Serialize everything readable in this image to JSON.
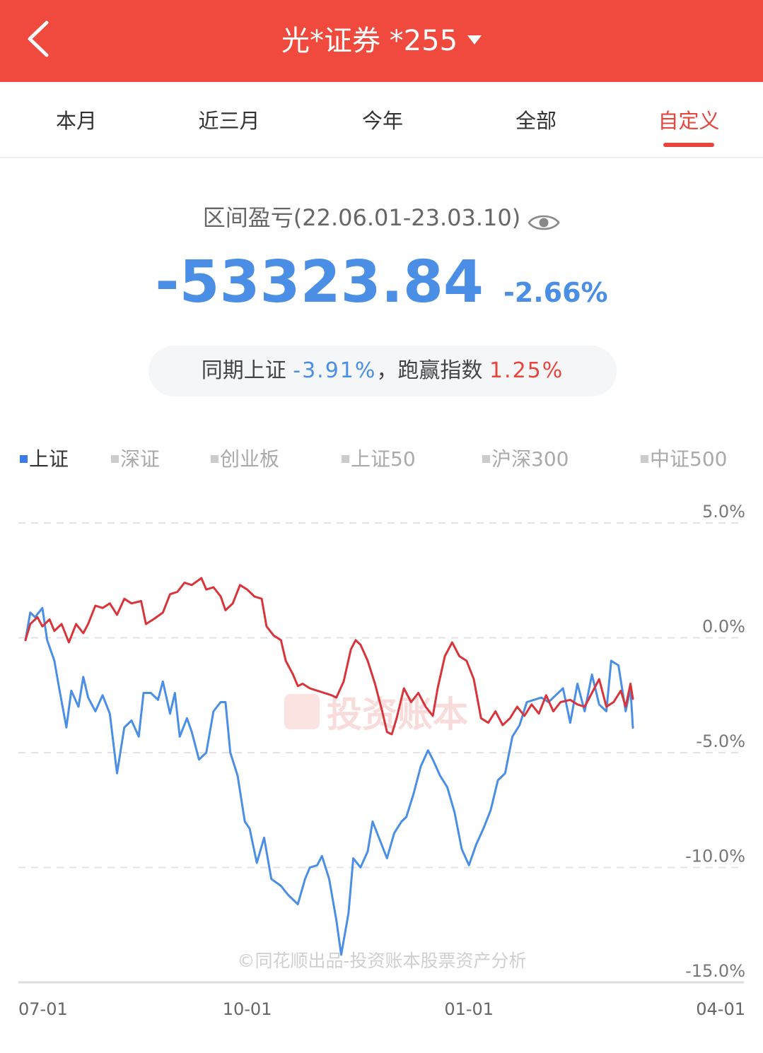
{
  "header": {
    "title": "光*证券 *255",
    "back_icon": "chevron-left-icon",
    "dropdown_icon": "caret-down-icon"
  },
  "tabs": [
    {
      "label": "本月",
      "active": false
    },
    {
      "label": "近三月",
      "active": false
    },
    {
      "label": "今年",
      "active": false
    },
    {
      "label": "全部",
      "active": false
    },
    {
      "label": "自定义",
      "active": true
    }
  ],
  "summary": {
    "period_label": "区间盈亏(22.06.01-23.03.10)",
    "pnl_amount": "-53323.84",
    "pnl_pct": "-2.66%",
    "compare_prefix": "同期上证 ",
    "index_pct": "-3.91%",
    "compare_mid": "，跑赢指数 ",
    "outperform_pct": "1.25%"
  },
  "legend": [
    {
      "label": "上证",
      "active": true
    },
    {
      "label": "深证",
      "active": false
    },
    {
      "label": "创业板",
      "active": false
    },
    {
      "label": "上证50",
      "active": false
    },
    {
      "label": "沪深300",
      "active": false
    },
    {
      "label": "中证500",
      "active": false
    }
  ],
  "colors": {
    "header_bg": "#f0493d",
    "accent_red": "#e8453c",
    "portfolio_line": "#d9343a",
    "index_line": "#4a8ee6",
    "profit_blue": "#4a8ee6"
  },
  "chart_data": {
    "type": "line",
    "y_tick_labels": [
      "5.0%",
      "0.0%",
      "-5.0%",
      "-10.0%",
      "-15.0%"
    ],
    "ylim": [
      -15,
      5
    ],
    "x_tick_labels": [
      "07-01",
      "10-01",
      "01-01",
      "04-01"
    ],
    "x_ticks": [
      "2022-07-01",
      "2022-10-01",
      "2023-01-01",
      "2023-04-01"
    ],
    "xlim": [
      "2022-07-01",
      "2023-04-01"
    ],
    "grid": "dashed horizontal",
    "watermark": "投资账本",
    "footer_credit": "©同花顺出品-投资账本股票资产分析",
    "series": [
      {
        "name": "",
        "color": "#d9343a",
        "points": [
          [
            "2022-07-01",
            -0.1
          ],
          [
            "2022-07-03",
            0.6
          ],
          [
            "2022-07-06",
            0.9
          ],
          [
            "2022-07-08",
            0.5
          ],
          [
            "2022-07-11",
            0.8
          ],
          [
            "2022-07-13",
            0.3
          ],
          [
            "2022-07-16",
            0.6
          ],
          [
            "2022-07-19",
            -0.2
          ],
          [
            "2022-07-22",
            0.6
          ],
          [
            "2022-07-25",
            0.2
          ],
          [
            "2022-07-27",
            0.6
          ],
          [
            "2022-07-30",
            1.4
          ],
          [
            "2022-08-02",
            1.3
          ],
          [
            "2022-08-05",
            1.5
          ],
          [
            "2022-08-08",
            1.0
          ],
          [
            "2022-08-11",
            1.7
          ],
          [
            "2022-08-14",
            1.5
          ],
          [
            "2022-08-18",
            1.6
          ],
          [
            "2022-08-20",
            0.6
          ],
          [
            "2022-08-23",
            0.8
          ],
          [
            "2022-08-27",
            1.1
          ],
          [
            "2022-08-30",
            1.9
          ],
          [
            "2022-09-02",
            2.0
          ],
          [
            "2022-09-05",
            2.4
          ],
          [
            "2022-09-08",
            2.3
          ],
          [
            "2022-09-12",
            2.6
          ],
          [
            "2022-09-14",
            2.1
          ],
          [
            "2022-09-17",
            2.2
          ],
          [
            "2022-09-20",
            1.8
          ],
          [
            "2022-09-22",
            1.2
          ],
          [
            "2022-09-25",
            1.5
          ],
          [
            "2022-09-28",
            2.3
          ],
          [
            "2022-10-01",
            2.1
          ],
          [
            "2022-10-04",
            1.8
          ],
          [
            "2022-10-07",
            1.7
          ],
          [
            "2022-10-09",
            0.5
          ],
          [
            "2022-10-12",
            0.1
          ],
          [
            "2022-10-15",
            -0.1
          ],
          [
            "2022-10-17",
            -1.0
          ],
          [
            "2022-10-20",
            -1.6
          ],
          [
            "2022-10-22",
            -2.1
          ],
          [
            "2022-10-24",
            -2.0
          ],
          [
            "2022-10-27",
            -2.2
          ],
          [
            "2022-10-30",
            -2.3
          ],
          [
            "2022-11-02",
            -2.4
          ],
          [
            "2022-11-05",
            -2.5
          ],
          [
            "2022-11-07",
            -2.6
          ],
          [
            "2022-11-10",
            -1.9
          ],
          [
            "2022-11-13",
            -0.5
          ],
          [
            "2022-11-15",
            -0.1
          ],
          [
            "2022-11-17",
            -0.3
          ],
          [
            "2022-11-20",
            -1.0
          ],
          [
            "2022-11-23",
            -2.0
          ],
          [
            "2022-11-26",
            -3.2
          ],
          [
            "2022-11-28",
            -4.1
          ],
          [
            "2022-11-30",
            -4.2
          ],
          [
            "2022-12-02",
            -3.5
          ],
          [
            "2022-12-05",
            -2.2
          ],
          [
            "2022-12-08",
            -2.8
          ],
          [
            "2022-12-11",
            -2.4
          ],
          [
            "2022-12-14",
            -3.0
          ],
          [
            "2022-12-17",
            -3.4
          ],
          [
            "2022-12-19",
            -2.2
          ],
          [
            "2022-12-22",
            -0.8
          ],
          [
            "2022-12-25",
            -0.2
          ],
          [
            "2022-12-28",
            -0.8
          ],
          [
            "2022-12-31",
            -1.0
          ],
          [
            "2023-01-03",
            -1.8
          ],
          [
            "2023-01-06",
            -3.5
          ],
          [
            "2023-01-09",
            -3.7
          ],
          [
            "2023-01-12",
            -3.2
          ],
          [
            "2023-01-15",
            -3.8
          ],
          [
            "2023-01-18",
            -3.5
          ],
          [
            "2023-01-21",
            -3.0
          ],
          [
            "2023-01-24",
            -3.4
          ],
          [
            "2023-01-27",
            -2.9
          ],
          [
            "2023-01-30",
            -3.3
          ],
          [
            "2023-02-02",
            -2.5
          ],
          [
            "2023-02-05",
            -3.2
          ],
          [
            "2023-02-08",
            -2.8
          ],
          [
            "2023-02-12",
            -2.7
          ],
          [
            "2023-02-15",
            -2.9
          ],
          [
            "2023-02-18",
            -3.0
          ],
          [
            "2023-02-21",
            -2.4
          ],
          [
            "2023-02-24",
            -1.8
          ],
          [
            "2023-02-27",
            -3.0
          ],
          [
            "2023-03-02",
            -2.8
          ],
          [
            "2023-03-05",
            -2.3
          ],
          [
            "2023-03-07",
            -3.0
          ],
          [
            "2023-03-09",
            -2.0
          ],
          [
            "2023-03-10",
            -2.66
          ]
        ]
      },
      {
        "name": "上证",
        "color": "#4a8ee6",
        "points": [
          [
            "2022-07-01",
            -0.1
          ],
          [
            "2022-07-03",
            1.1
          ],
          [
            "2022-07-05",
            0.9
          ],
          [
            "2022-07-08",
            1.3
          ],
          [
            "2022-07-10",
            -0.1
          ],
          [
            "2022-07-13",
            -1.0
          ],
          [
            "2022-07-15",
            -2.2
          ],
          [
            "2022-07-18",
            -3.9
          ],
          [
            "2022-07-20",
            -2.3
          ],
          [
            "2022-07-23",
            -3.0
          ],
          [
            "2022-07-25",
            -1.7
          ],
          [
            "2022-07-27",
            -2.6
          ],
          [
            "2022-07-30",
            -3.2
          ],
          [
            "2022-08-02",
            -2.5
          ],
          [
            "2022-08-05",
            -3.3
          ],
          [
            "2022-08-08",
            -5.9
          ],
          [
            "2022-08-11",
            -3.9
          ],
          [
            "2022-08-14",
            -3.6
          ],
          [
            "2022-08-17",
            -4.3
          ],
          [
            "2022-08-19",
            -2.4
          ],
          [
            "2022-08-22",
            -2.4
          ],
          [
            "2022-08-25",
            -2.7
          ],
          [
            "2022-08-27",
            -1.9
          ],
          [
            "2022-08-30",
            -3.3
          ],
          [
            "2022-09-01",
            -2.4
          ],
          [
            "2022-09-03",
            -4.3
          ],
          [
            "2022-09-06",
            -3.5
          ],
          [
            "2022-09-08",
            -4.1
          ],
          [
            "2022-09-11",
            -5.3
          ],
          [
            "2022-09-14",
            -5.0
          ],
          [
            "2022-09-17",
            -3.2
          ],
          [
            "2022-09-20",
            -2.8
          ],
          [
            "2022-09-22",
            -2.8
          ],
          [
            "2022-09-24",
            -5.0
          ],
          [
            "2022-09-27",
            -6.0
          ],
          [
            "2022-09-30",
            -8.0
          ],
          [
            "2022-10-02",
            -8.3
          ],
          [
            "2022-10-05",
            -9.8
          ],
          [
            "2022-10-08",
            -8.7
          ],
          [
            "2022-10-11",
            -10.5
          ],
          [
            "2022-10-15",
            -10.8
          ],
          [
            "2022-10-18",
            -11.2
          ],
          [
            "2022-10-22",
            -11.6
          ],
          [
            "2022-10-25",
            -10.5
          ],
          [
            "2022-10-27",
            -10.0
          ],
          [
            "2022-10-30",
            -9.9
          ],
          [
            "2022-11-01",
            -9.5
          ],
          [
            "2022-11-04",
            -10.5
          ],
          [
            "2022-11-07",
            -12.3
          ],
          [
            "2022-11-09",
            -13.8
          ],
          [
            "2022-11-12",
            -12.0
          ],
          [
            "2022-11-14",
            -9.6
          ],
          [
            "2022-11-17",
            -10.0
          ],
          [
            "2022-11-20",
            -9.3
          ],
          [
            "2022-11-22",
            -8.0
          ],
          [
            "2022-11-25",
            -8.8
          ],
          [
            "2022-11-28",
            -9.6
          ],
          [
            "2022-12-01",
            -8.5
          ],
          [
            "2022-12-04",
            -8.0
          ],
          [
            "2022-12-06",
            -7.8
          ],
          [
            "2022-12-09",
            -6.8
          ],
          [
            "2022-12-12",
            -5.6
          ],
          [
            "2022-12-15",
            -4.9
          ],
          [
            "2022-12-17",
            -5.3
          ],
          [
            "2022-12-20",
            -6.0
          ],
          [
            "2022-12-23",
            -6.5
          ],
          [
            "2022-12-26",
            -7.6
          ],
          [
            "2022-12-29",
            -9.2
          ],
          [
            "2023-01-01",
            -9.9
          ],
          [
            "2023-01-04",
            -9.0
          ],
          [
            "2023-01-07",
            -8.3
          ],
          [
            "2023-01-10",
            -7.5
          ],
          [
            "2023-01-13",
            -6.2
          ],
          [
            "2023-01-16",
            -5.9
          ],
          [
            "2023-01-19",
            -4.3
          ],
          [
            "2023-01-22",
            -3.8
          ],
          [
            "2023-01-25",
            -2.8
          ],
          [
            "2023-01-28",
            -2.7
          ],
          [
            "2023-01-31",
            -2.6
          ],
          [
            "2023-02-03",
            -2.8
          ],
          [
            "2023-02-06",
            -2.5
          ],
          [
            "2023-02-09",
            -2.2
          ],
          [
            "2023-02-12",
            -3.7
          ],
          [
            "2023-02-15",
            -2.0
          ],
          [
            "2023-02-18",
            -3.2
          ],
          [
            "2023-02-21",
            -1.6
          ],
          [
            "2023-02-24",
            -2.9
          ],
          [
            "2023-02-27",
            -3.2
          ],
          [
            "2023-03-01",
            -1.0
          ],
          [
            "2023-03-04",
            -1.2
          ],
          [
            "2023-03-07",
            -3.2
          ],
          [
            "2023-03-09",
            -2.2
          ],
          [
            "2023-03-10",
            -3.91
          ]
        ]
      }
    ]
  }
}
